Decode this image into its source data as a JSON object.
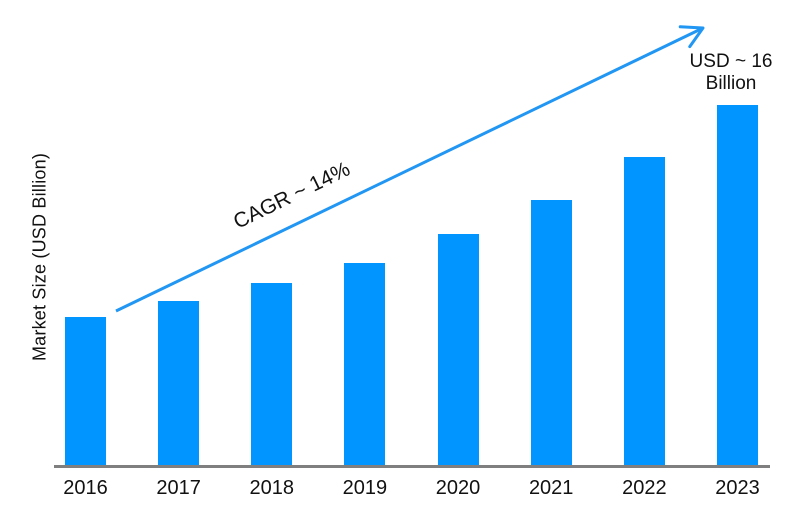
{
  "chart_data": {
    "type": "bar",
    "title": "",
    "categories": [
      "2016",
      "2017",
      "2018",
      "2019",
      "2020",
      "2021",
      "2022",
      "2023"
    ],
    "values": [
      6.6,
      7.3,
      8.1,
      9.0,
      10.3,
      11.8,
      13.7,
      16.0
    ],
    "series_name": "Market Size",
    "unit": "USD Billion",
    "xlabel": "",
    "ylabel": "Market Size (USD Billion)",
    "ylim": [
      0,
      17
    ],
    "grid": false,
    "legend": false,
    "y_ticks_visible": false,
    "annotations": {
      "cagr": "CAGR ~ 14%",
      "value_label_line1": "USD ~ 16",
      "value_label_line2": "Billion"
    },
    "colors": {
      "bar": "#0095FF",
      "arrow": "#2196F3",
      "axis": "#7F7F7F",
      "text": "#111111",
      "background": "#FFFFFF"
    }
  }
}
